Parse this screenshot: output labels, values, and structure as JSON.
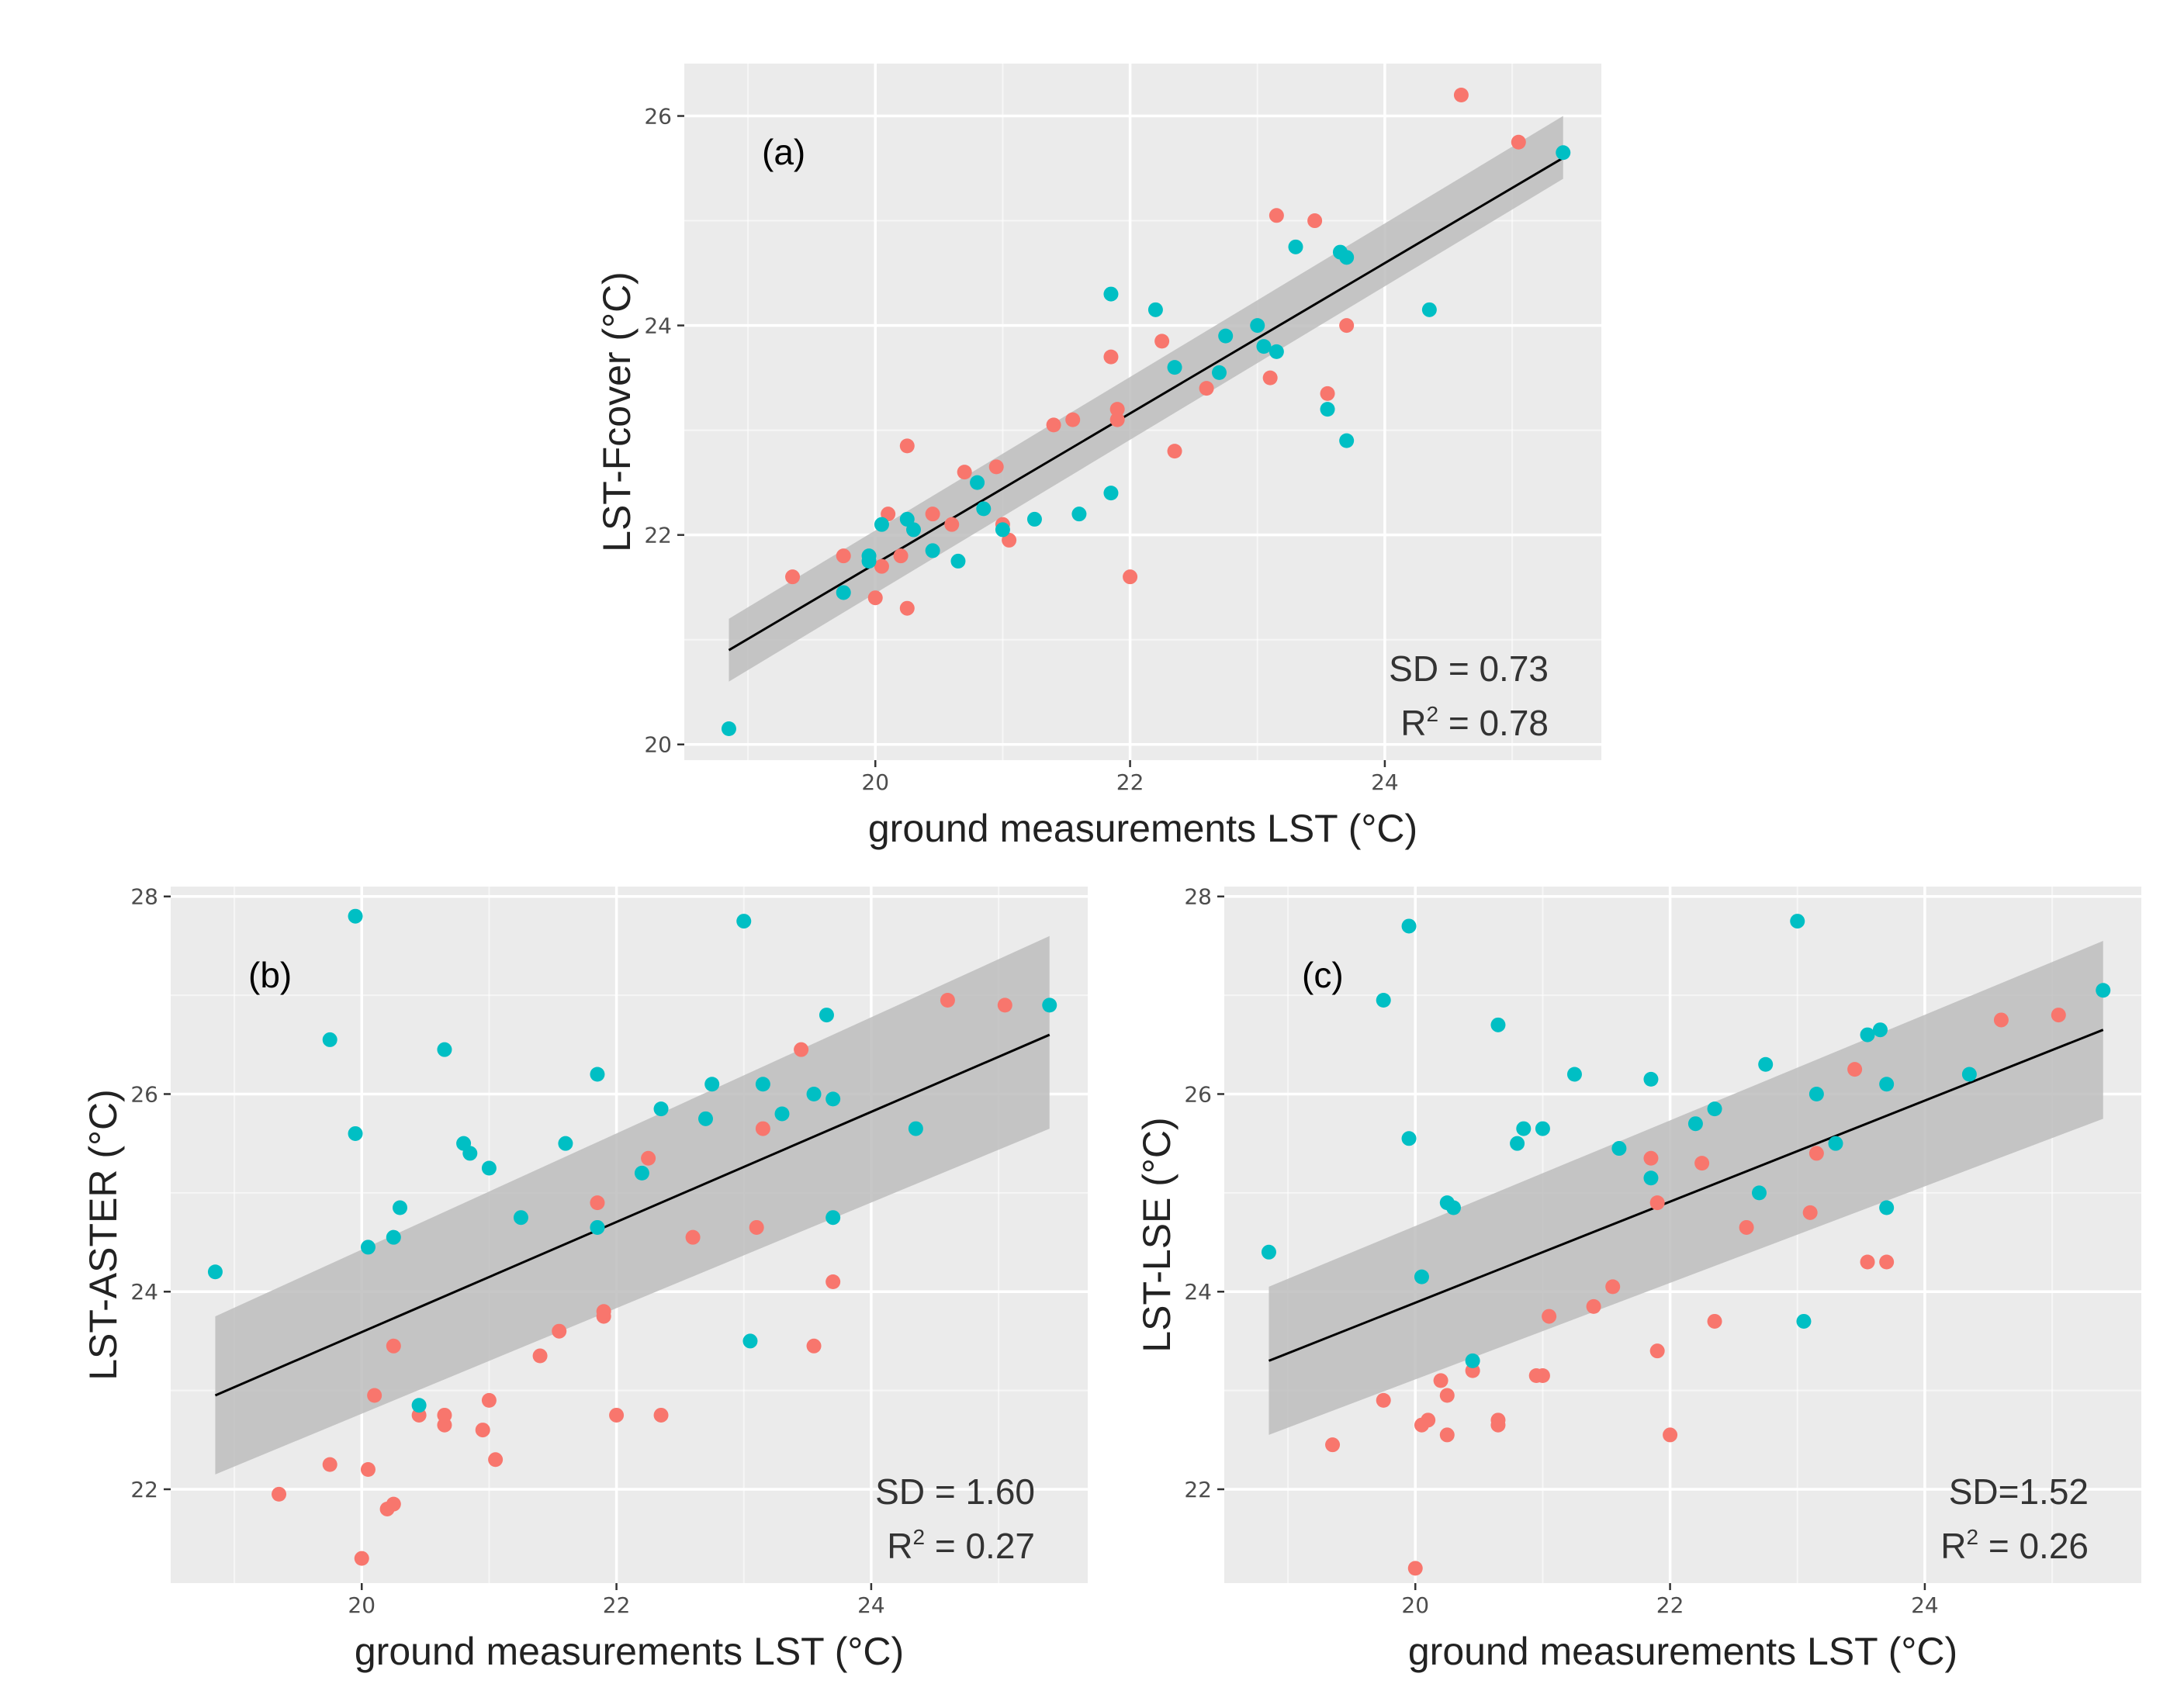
{
  "colors": {
    "panel_bg": "#ebebeb",
    "grid_major": "#ffffff",
    "ribbon": "#bdbdbd",
    "fit_line": "#000000",
    "series_a": "#f8766d",
    "series_b": "#00bfc4"
  },
  "chart_data": [
    {
      "type": "scatter",
      "panel_label": "(a)",
      "xlabel": "ground measurements LST (°C)",
      "ylabel": "LST-Fcover (°C)",
      "xlim": [
        18.5,
        25.7
      ],
      "ylim": [
        19.85,
        26.5
      ],
      "x_ticks": [
        20,
        22,
        24
      ],
      "y_ticks": [
        20,
        22,
        24,
        26
      ],
      "grid": true,
      "stats": {
        "sd": "SD = 0.73",
        "r2_prefix": "R",
        "r2_sup": "2",
        "r2_value": " = 0.78"
      },
      "fit": {
        "x": [
          18.85,
          25.4
        ],
        "y": [
          20.9,
          25.6
        ],
        "band_lo": [
          20.6,
          25.4
        ],
        "band_hi": [
          21.2,
          26.0
        ]
      },
      "series": [
        {
          "color": "#f8766d",
          "points": [
            [
              19.35,
              21.6
            ],
            [
              19.75,
              21.8
            ],
            [
              20.0,
              21.4
            ],
            [
              20.05,
              21.7
            ],
            [
              20.1,
              22.2
            ],
            [
              20.2,
              21.8
            ],
            [
              20.25,
              22.85
            ],
            [
              20.25,
              21.3
            ],
            [
              20.45,
              22.2
            ],
            [
              20.6,
              22.1
            ],
            [
              20.7,
              22.6
            ],
            [
              20.95,
              22.65
            ],
            [
              21.0,
              22.1
            ],
            [
              21.05,
              21.95
            ],
            [
              21.4,
              23.05
            ],
            [
              21.55,
              23.1
            ],
            [
              21.85,
              23.7
            ],
            [
              21.9,
              23.1
            ],
            [
              21.9,
              23.2
            ],
            [
              22.0,
              21.6
            ],
            [
              22.25,
              23.85
            ],
            [
              22.35,
              22.8
            ],
            [
              22.6,
              23.4
            ],
            [
              23.1,
              23.5
            ],
            [
              23.15,
              25.05
            ],
            [
              23.45,
              25.0
            ],
            [
              23.55,
              23.35
            ],
            [
              23.7,
              24.0
            ],
            [
              24.6,
              26.2
            ],
            [
              25.05,
              25.75
            ]
          ]
        },
        {
          "color": "#00bfc4",
          "points": [
            [
              18.85,
              20.15
            ],
            [
              19.75,
              21.45
            ],
            [
              19.95,
              21.75
            ],
            [
              19.95,
              21.8
            ],
            [
              20.05,
              22.1
            ],
            [
              20.25,
              22.15
            ],
            [
              20.3,
              22.05
            ],
            [
              20.45,
              21.85
            ],
            [
              20.65,
              21.75
            ],
            [
              20.8,
              22.5
            ],
            [
              20.85,
              22.25
            ],
            [
              21.0,
              22.05
            ],
            [
              21.25,
              22.15
            ],
            [
              21.6,
              22.2
            ],
            [
              21.85,
              22.4
            ],
            [
              21.85,
              24.3
            ],
            [
              22.2,
              24.15
            ],
            [
              22.35,
              23.6
            ],
            [
              22.7,
              23.55
            ],
            [
              22.75,
              23.9
            ],
            [
              23.0,
              24.0
            ],
            [
              23.05,
              23.8
            ],
            [
              23.15,
              23.75
            ],
            [
              23.3,
              24.75
            ],
            [
              23.55,
              23.2
            ],
            [
              23.65,
              24.7
            ],
            [
              23.7,
              24.65
            ],
            [
              23.7,
              22.9
            ],
            [
              24.35,
              24.15
            ],
            [
              25.4,
              25.65
            ]
          ]
        }
      ]
    },
    {
      "type": "scatter",
      "panel_label": "(b)",
      "xlabel": "ground measurements LST (°C)",
      "ylabel": "LST-ASTER (°C)",
      "xlim": [
        18.5,
        25.7
      ],
      "ylim": [
        21.05,
        28.1
      ],
      "x_ticks": [
        20,
        22,
        24
      ],
      "y_ticks": [
        22,
        24,
        26,
        28
      ],
      "grid": true,
      "stats": {
        "sd": "SD = 1.60",
        "r2_prefix": "R",
        "r2_sup": "2",
        "r2_value": " = 0.27"
      },
      "fit": {
        "x": [
          18.85,
          25.4
        ],
        "y": [
          22.95,
          26.6
        ],
        "band_lo": [
          22.15,
          25.65
        ],
        "band_hi": [
          23.75,
          27.6
        ]
      },
      "series": [
        {
          "color": "#f8766d",
          "points": [
            [
              19.35,
              21.95
            ],
            [
              19.75,
              22.25
            ],
            [
              20.0,
              21.3
            ],
            [
              20.05,
              22.2
            ],
            [
              20.1,
              22.95
            ],
            [
              20.2,
              21.8
            ],
            [
              20.25,
              21.85
            ],
            [
              20.25,
              23.45
            ],
            [
              20.45,
              22.75
            ],
            [
              20.65,
              22.65
            ],
            [
              20.65,
              22.75
            ],
            [
              20.95,
              22.6
            ],
            [
              21.0,
              22.9
            ],
            [
              21.05,
              22.3
            ],
            [
              21.4,
              23.35
            ],
            [
              21.55,
              23.6
            ],
            [
              21.85,
              24.9
            ],
            [
              21.9,
              23.75
            ],
            [
              21.9,
              23.8
            ],
            [
              22.0,
              22.75
            ],
            [
              22.25,
              25.35
            ],
            [
              22.35,
              22.75
            ],
            [
              22.6,
              24.55
            ],
            [
              23.1,
              24.65
            ],
            [
              23.15,
              25.65
            ],
            [
              23.45,
              26.45
            ],
            [
              23.55,
              23.45
            ],
            [
              23.7,
              24.1
            ],
            [
              24.6,
              26.95
            ],
            [
              25.05,
              26.9
            ]
          ]
        },
        {
          "color": "#00bfc4",
          "points": [
            [
              18.85,
              24.2
            ],
            [
              19.75,
              26.55
            ],
            [
              19.95,
              27.8
            ],
            [
              19.95,
              25.6
            ],
            [
              20.05,
              24.45
            ],
            [
              20.25,
              24.55
            ],
            [
              20.3,
              24.85
            ],
            [
              20.45,
              22.85
            ],
            [
              20.65,
              26.45
            ],
            [
              20.8,
              25.5
            ],
            [
              20.85,
              25.4
            ],
            [
              21.0,
              25.25
            ],
            [
              21.25,
              24.75
            ],
            [
              21.6,
              25.5
            ],
            [
              21.85,
              26.2
            ],
            [
              21.85,
              24.65
            ],
            [
              22.2,
              25.2
            ],
            [
              22.35,
              25.85
            ],
            [
              22.7,
              25.75
            ],
            [
              22.75,
              26.1
            ],
            [
              23.0,
              27.75
            ],
            [
              23.05,
              23.5
            ],
            [
              23.15,
              26.1
            ],
            [
              23.3,
              25.8
            ],
            [
              23.55,
              26.0
            ],
            [
              23.65,
              26.8
            ],
            [
              23.7,
              25.95
            ],
            [
              23.7,
              24.75
            ],
            [
              24.35,
              25.65
            ],
            [
              25.4,
              26.9
            ]
          ]
        }
      ]
    },
    {
      "type": "scatter",
      "panel_label": "(c)",
      "xlabel": "ground measurements LST (°C)",
      "ylabel": "LST-LSE (°C)",
      "xlim": [
        18.5,
        25.7
      ],
      "ylim": [
        21.05,
        28.1
      ],
      "x_ticks": [
        20,
        22,
        24
      ],
      "y_ticks": [
        22,
        24,
        26,
        28
      ],
      "grid": true,
      "stats": {
        "sd": "SD=1.52",
        "r2_prefix": "R",
        "r2_sup": "2",
        "r2_value": " = 0.26"
      },
      "fit": {
        "x": [
          18.85,
          25.4
        ],
        "y": [
          23.3,
          26.65
        ],
        "band_lo": [
          22.55,
          25.75
        ],
        "band_hi": [
          24.05,
          27.55
        ]
      },
      "series": [
        {
          "color": "#f8766d",
          "points": [
            [
              19.35,
              22.45
            ],
            [
              19.75,
              22.9
            ],
            [
              20.0,
              21.2
            ],
            [
              20.05,
              22.65
            ],
            [
              20.1,
              22.7
            ],
            [
              20.2,
              23.1
            ],
            [
              20.25,
              22.55
            ],
            [
              20.25,
              22.95
            ],
            [
              20.45,
              23.2
            ],
            [
              20.65,
              22.7
            ],
            [
              20.65,
              22.65
            ],
            [
              20.95,
              23.15
            ],
            [
              21.0,
              23.15
            ],
            [
              21.05,
              23.75
            ],
            [
              21.4,
              23.85
            ],
            [
              21.55,
              24.05
            ],
            [
              21.85,
              25.35
            ],
            [
              21.9,
              23.4
            ],
            [
              21.9,
              24.9
            ],
            [
              22.0,
              22.55
            ],
            [
              22.25,
              25.3
            ],
            [
              22.35,
              23.7
            ],
            [
              22.6,
              24.65
            ],
            [
              23.1,
              24.8
            ],
            [
              23.15,
              25.4
            ],
            [
              23.45,
              26.25
            ],
            [
              23.55,
              24.3
            ],
            [
              23.7,
              24.3
            ],
            [
              24.6,
              26.75
            ],
            [
              25.05,
              26.8
            ]
          ]
        },
        {
          "color": "#00bfc4",
          "points": [
            [
              18.85,
              24.4
            ],
            [
              19.75,
              26.95
            ],
            [
              19.95,
              27.7
            ],
            [
              19.95,
              25.55
            ],
            [
              20.05,
              24.15
            ],
            [
              20.25,
              24.9
            ],
            [
              20.3,
              24.85
            ],
            [
              20.45,
              23.3
            ],
            [
              20.65,
              26.7
            ],
            [
              20.8,
              25.5
            ],
            [
              20.85,
              25.65
            ],
            [
              21.0,
              25.65
            ],
            [
              21.25,
              26.2
            ],
            [
              21.6,
              25.45
            ],
            [
              21.85,
              26.15
            ],
            [
              21.85,
              25.15
            ],
            [
              22.2,
              25.7
            ],
            [
              22.35,
              25.85
            ],
            [
              22.7,
              25.0
            ],
            [
              22.75,
              26.3
            ],
            [
              23.0,
              27.75
            ],
            [
              23.05,
              23.7
            ],
            [
              23.15,
              26.0
            ],
            [
              23.3,
              25.5
            ],
            [
              23.55,
              26.6
            ],
            [
              23.65,
              26.65
            ],
            [
              23.7,
              26.1
            ],
            [
              23.7,
              24.85
            ],
            [
              24.35,
              26.2
            ],
            [
              25.4,
              27.05
            ]
          ]
        }
      ]
    }
  ]
}
